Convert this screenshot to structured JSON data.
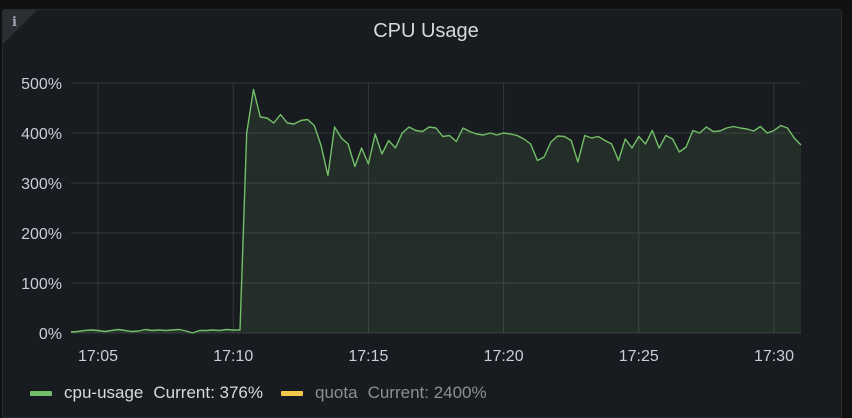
{
  "panel": {
    "title": "CPU Usage",
    "info_icon": "info-icon"
  },
  "legend": [
    {
      "name": "cpu-usage",
      "current": "Current: 376%",
      "color": "#73bf69",
      "muted": false
    },
    {
      "name": "quota",
      "current": "Current: 2400%",
      "color": "#f2c94c",
      "muted": true
    }
  ],
  "chart_data": {
    "type": "area",
    "x_range": [
      "17:04:00",
      "17:31:00"
    ],
    "ylim": [
      0,
      500
    ],
    "y_ticks": [
      {
        "value": 0,
        "label": "0%"
      },
      {
        "value": 100,
        "label": "100%"
      },
      {
        "value": 200,
        "label": "200%"
      },
      {
        "value": 300,
        "label": "300%"
      },
      {
        "value": 400,
        "label": "400%"
      },
      {
        "value": 500,
        "label": "500%"
      }
    ],
    "x_ticks": [
      {
        "value": "17:05",
        "label": "17:05"
      },
      {
        "value": "17:10",
        "label": "17:10"
      },
      {
        "value": "17:15",
        "label": "17:15"
      },
      {
        "value": "17:20",
        "label": "17:20"
      },
      {
        "value": "17:25",
        "label": "17:25"
      },
      {
        "value": "17:30",
        "label": "17:30"
      }
    ],
    "grid": true,
    "series": [
      {
        "name": "cpu-usage",
        "color": "#73bf69",
        "points": [
          [
            "17:04:00",
            2
          ],
          [
            "17:04:15",
            3
          ],
          [
            "17:04:30",
            5
          ],
          [
            "17:04:45",
            6
          ],
          [
            "17:05:00",
            5
          ],
          [
            "17:05:15",
            3
          ],
          [
            "17:05:30",
            5
          ],
          [
            "17:05:45",
            7
          ],
          [
            "17:06:00",
            5
          ],
          [
            "17:06:15",
            3
          ],
          [
            "17:06:30",
            4
          ],
          [
            "17:06:45",
            7
          ],
          [
            "17:07:00",
            5
          ],
          [
            "17:07:15",
            6
          ],
          [
            "17:07:30",
            5
          ],
          [
            "17:07:45",
            6
          ],
          [
            "17:08:00",
            7
          ],
          [
            "17:08:15",
            4
          ],
          [
            "17:08:30",
            0
          ],
          [
            "17:08:45",
            5
          ],
          [
            "17:09:00",
            5
          ],
          [
            "17:09:15",
            6
          ],
          [
            "17:09:30",
            5
          ],
          [
            "17:09:45",
            7
          ],
          [
            "17:10:00",
            6
          ],
          [
            "17:10:15",
            6
          ],
          [
            "17:10:30",
            400
          ],
          [
            "17:10:45",
            487
          ],
          [
            "17:11:00",
            432
          ],
          [
            "17:11:15",
            430
          ],
          [
            "17:11:30",
            420
          ],
          [
            "17:11:45",
            437
          ],
          [
            "17:12:00",
            420
          ],
          [
            "17:12:15",
            418
          ],
          [
            "17:12:30",
            425
          ],
          [
            "17:12:45",
            427
          ],
          [
            "17:13:00",
            415
          ],
          [
            "17:13:15",
            375
          ],
          [
            "17:13:30",
            315
          ],
          [
            "17:13:45",
            412
          ],
          [
            "17:14:00",
            390
          ],
          [
            "17:14:15",
            378
          ],
          [
            "17:14:30",
            333
          ],
          [
            "17:14:45",
            370
          ],
          [
            "17:15:00",
            338
          ],
          [
            "17:15:15",
            398
          ],
          [
            "17:15:30",
            358
          ],
          [
            "17:15:45",
            385
          ],
          [
            "17:16:00",
            370
          ],
          [
            "17:16:15",
            400
          ],
          [
            "17:16:30",
            412
          ],
          [
            "17:16:45",
            405
          ],
          [
            "17:17:00",
            403
          ],
          [
            "17:17:15",
            412
          ],
          [
            "17:17:30",
            410
          ],
          [
            "17:17:45",
            393
          ],
          [
            "17:18:00",
            395
          ],
          [
            "17:18:15",
            383
          ],
          [
            "17:18:30",
            410
          ],
          [
            "17:18:45",
            403
          ],
          [
            "17:19:00",
            398
          ],
          [
            "17:19:15",
            396
          ],
          [
            "17:19:30",
            400
          ],
          [
            "17:19:45",
            396
          ],
          [
            "17:20:00",
            400
          ],
          [
            "17:20:15",
            398
          ],
          [
            "17:20:30",
            395
          ],
          [
            "17:20:45",
            388
          ],
          [
            "17:21:00",
            378
          ],
          [
            "17:21:15",
            345
          ],
          [
            "17:21:30",
            352
          ],
          [
            "17:21:45",
            382
          ],
          [
            "17:22:00",
            394
          ],
          [
            "17:22:15",
            393
          ],
          [
            "17:22:30",
            385
          ],
          [
            "17:22:45",
            342
          ],
          [
            "17:23:00",
            395
          ],
          [
            "17:23:15",
            390
          ],
          [
            "17:23:30",
            393
          ],
          [
            "17:23:45",
            385
          ],
          [
            "17:24:00",
            378
          ],
          [
            "17:24:15",
            345
          ],
          [
            "17:24:30",
            388
          ],
          [
            "17:24:45",
            370
          ],
          [
            "17:25:00",
            393
          ],
          [
            "17:25:15",
            378
          ],
          [
            "17:25:30",
            405
          ],
          [
            "17:25:45",
            370
          ],
          [
            "17:26:00",
            395
          ],
          [
            "17:26:15",
            388
          ],
          [
            "17:26:30",
            362
          ],
          [
            "17:26:45",
            372
          ],
          [
            "17:27:00",
            405
          ],
          [
            "17:27:15",
            400
          ],
          [
            "17:27:30",
            412
          ],
          [
            "17:27:45",
            403
          ],
          [
            "17:28:00",
            404
          ],
          [
            "17:28:15",
            410
          ],
          [
            "17:28:30",
            413
          ],
          [
            "17:28:45",
            410
          ],
          [
            "17:29:00",
            408
          ],
          [
            "17:29:15",
            404
          ],
          [
            "17:29:30",
            413
          ],
          [
            "17:29:45",
            400
          ],
          [
            "17:30:00",
            405
          ],
          [
            "17:30:15",
            415
          ],
          [
            "17:30:30",
            410
          ],
          [
            "17:30:45",
            390
          ],
          [
            "17:31:00",
            376
          ]
        ]
      }
    ]
  }
}
